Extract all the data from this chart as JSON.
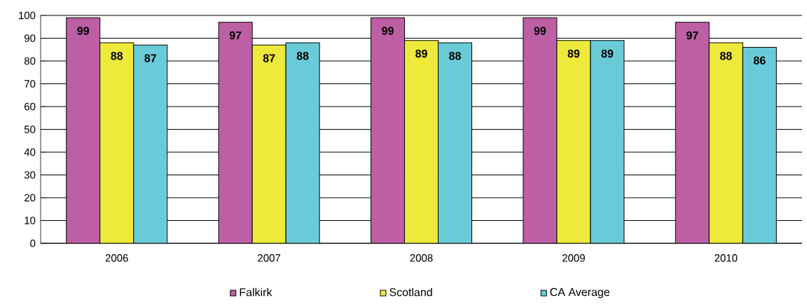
{
  "chart_data": {
    "type": "bar",
    "categories": [
      "2006",
      "2007",
      "2008",
      "2009",
      "2010"
    ],
    "series": [
      {
        "name": "Falkirk",
        "color": "#bd5fa5",
        "values": [
          99,
          97,
          99,
          99,
          97
        ]
      },
      {
        "name": "Scotland",
        "color": "#eeea3c",
        "values": [
          88,
          87,
          89,
          89,
          88
        ]
      },
      {
        "name": "CA Average",
        "color": "#6acbd8",
        "values": [
          87,
          88,
          88,
          89,
          86
        ]
      }
    ],
    "ylim": [
      0,
      100
    ],
    "yticks": [
      0,
      10,
      20,
      30,
      40,
      50,
      60,
      70,
      80,
      90,
      100
    ],
    "grid": "y",
    "legend": "bottom",
    "data_labels": true
  }
}
